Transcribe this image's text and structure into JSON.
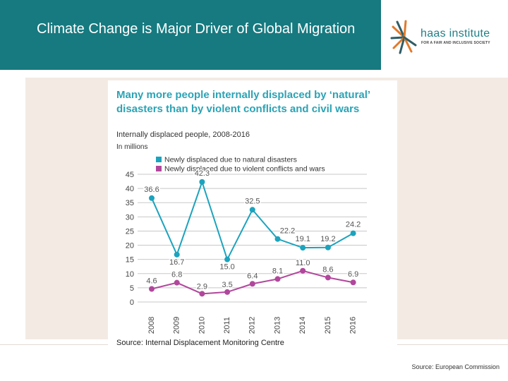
{
  "slide": {
    "title": "Climate Change is Major Driver of Global Migration",
    "source": "Source: European Commission"
  },
  "logo": {
    "name": "haas institute",
    "tagline": "FOR A FAIR AND INCLUSIVE SOCIETY"
  },
  "colors": {
    "header": "#167a80",
    "natural": "#1ca3bd",
    "conflict": "#b1479c"
  },
  "chart_data": {
    "type": "line",
    "title": "Many more people internally displaced by ‘natural’ disasters than by violent conflicts and civil wars",
    "subtitle": "Internally displaced people, 2008-2016",
    "ylabel": "In millions",
    "source": "Source: Internal Displacement Monitoring Centre",
    "categories": [
      "2008",
      "2009",
      "2010",
      "2011",
      "2012",
      "2013",
      "2014",
      "2015",
      "2016"
    ],
    "ylim": [
      0,
      45
    ],
    "yticks": [
      0,
      5,
      10,
      15,
      20,
      25,
      30,
      35,
      40,
      45
    ],
    "legend_position": "top-left",
    "series": [
      {
        "name": "Newly displaced due to natural disasters",
        "values": [
          36.6,
          16.7,
          42.3,
          15.0,
          32.5,
          22.2,
          19.1,
          19.2,
          24.2
        ],
        "labels": [
          "36.6",
          "16.7",
          "42.3",
          "15.0",
          "32.5",
          "22.2",
          "19.1",
          "19.2",
          "24.2"
        ]
      },
      {
        "name": "Newly displaced due to violent conflicts and wars",
        "values": [
          4.6,
          6.8,
          2.9,
          3.5,
          6.4,
          8.1,
          11.0,
          8.6,
          6.9
        ],
        "labels": [
          "4.6",
          "6.8",
          "2.9",
          "3.5",
          "6.4",
          "8.1",
          "11.0",
          "8.6",
          "6.9"
        ]
      }
    ]
  }
}
